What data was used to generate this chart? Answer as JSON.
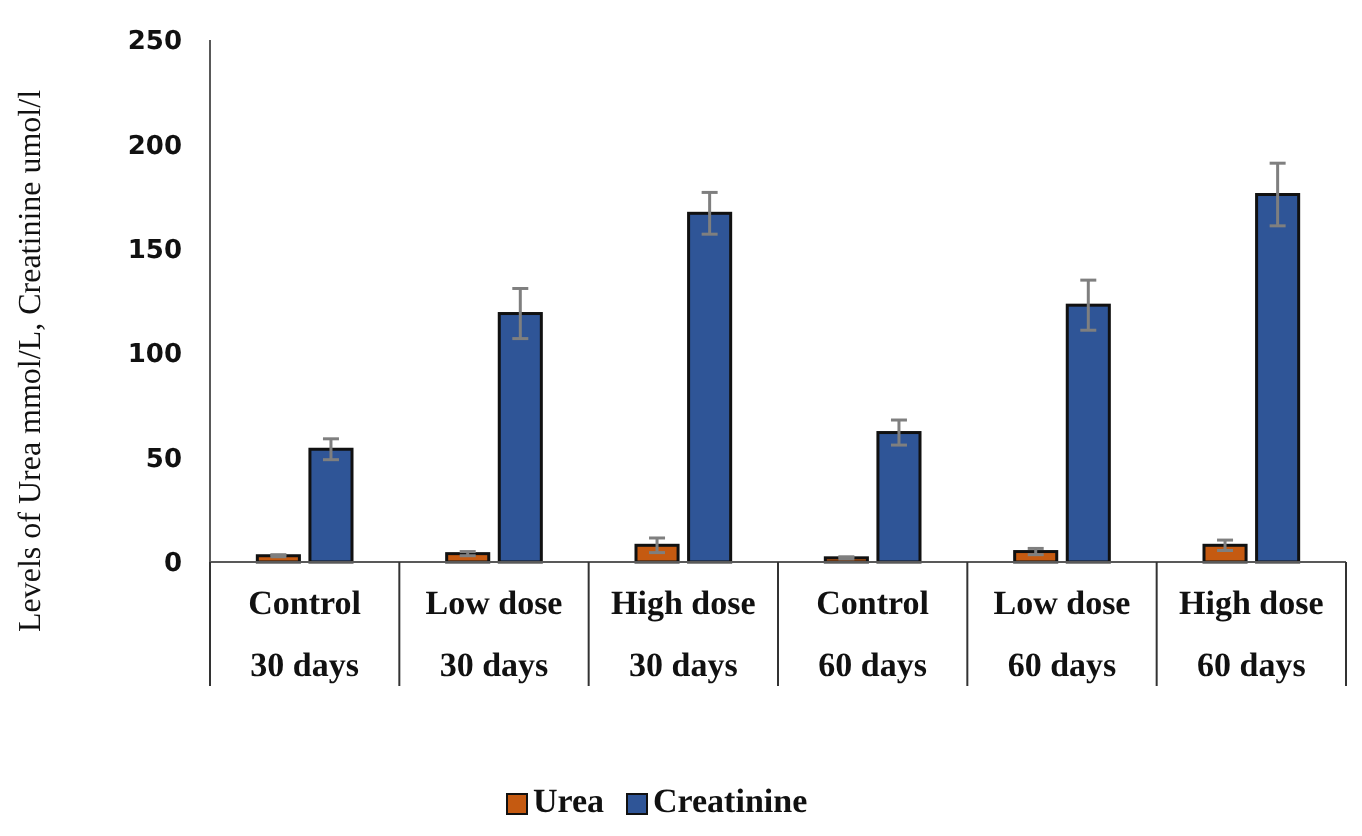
{
  "chart_data": {
    "type": "bar",
    "ylabel": "Levels of Urea mmol/L, Creatinine umol/l",
    "categories": [
      "Control\n30 days",
      "Low dose\n30 days",
      "High dose\n30 days",
      "Control\n60 days",
      "Low dose\n60 days",
      "High dose\n60 days"
    ],
    "series": [
      {
        "name": "Urea",
        "color": "#c55a11",
        "values": [
          3,
          4,
          8,
          2,
          5,
          8
        ],
        "errors": [
          0.5,
          1,
          3.5,
          0.5,
          1.5,
          2.5
        ]
      },
      {
        "name": "Creatinine",
        "color": "#2f5597",
        "values": [
          54,
          119,
          167,
          62,
          123,
          176
        ],
        "errors": [
          5,
          12,
          10,
          6,
          12,
          15
        ]
      }
    ],
    "ylim": [
      0,
      250
    ],
    "yticks": [
      0,
      50,
      100,
      150,
      200,
      250
    ],
    "grid": false,
    "legend": "bottom"
  }
}
